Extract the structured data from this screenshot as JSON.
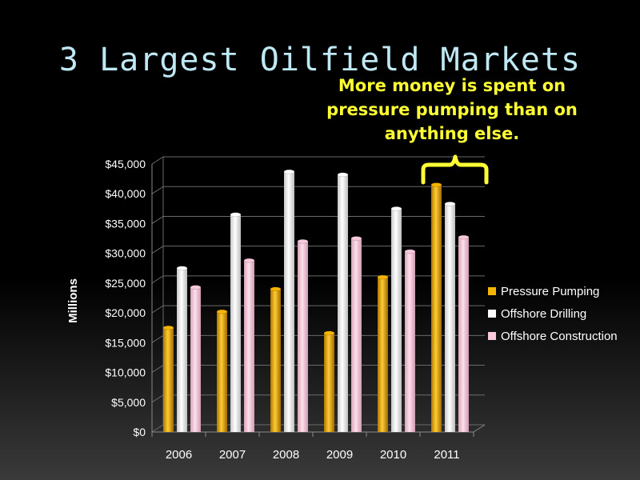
{
  "slide": {
    "title": "3 Largest Oilfield Markets",
    "callout_lines": [
      "More money is spent on",
      "pressure pumping than on",
      "anything else."
    ],
    "callout_color": "#ffff33"
  },
  "chart_data": {
    "type": "bar",
    "title": "",
    "xlabel": "",
    "ylabel": "Millions",
    "categories": [
      "2006",
      "2007",
      "2008",
      "2009",
      "2010",
      "2011"
    ],
    "series": [
      {
        "name": "Pressure Pumping",
        "color": "#f5b400",
        "values": [
          17500,
          20200,
          24000,
          16600,
          26000,
          41500
        ]
      },
      {
        "name": "Offshore Drilling",
        "color": "#ffffff",
        "values": [
          27500,
          36500,
          43700,
          43200,
          37500,
          38300
        ]
      },
      {
        "name": "Offshore Construction",
        "color": "#f8c8dc",
        "values": [
          24300,
          28800,
          32000,
          32500,
          30300,
          32700
        ]
      }
    ],
    "ylim": [
      0,
      45000
    ],
    "yticks": [
      "$0",
      "$5,000",
      "$10,000",
      "$15,000",
      "$20,000",
      "$25,000",
      "$30,000",
      "$35,000",
      "$40,000",
      "$45,000"
    ],
    "grid": true,
    "legend_position": "right",
    "annotation": "bracket over 2011"
  }
}
